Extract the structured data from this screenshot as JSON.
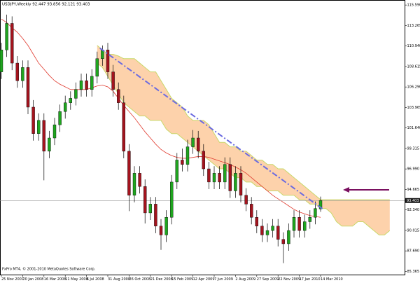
{
  "chart_data": {
    "type": "candlestick",
    "title": "USDJPY,Weekly  92.447 93.856 92.121 93.403",
    "footer": "FxPro MT4, © 2001-2010 MetaQuotes Software Corp.",
    "categories": [
      "25 Nov 2007",
      null,
      null,
      null,
      "20 Jan 2008",
      null,
      null,
      null,
      "16 Mar 2008",
      null,
      null,
      null,
      "11 May 2008",
      null,
      null,
      null,
      "6 Jul 2008",
      null,
      null,
      null,
      "31 Aug 2008",
      null,
      null,
      null,
      "26 Oct 2008",
      null,
      null,
      null,
      "21 Dec 2008",
      null,
      null,
      null,
      "15 Feb 2009",
      null,
      null,
      null,
      "12 Apr 2009",
      null,
      null,
      null,
      "7 Jun 2009",
      null,
      null,
      null,
      "2 Aug 2009",
      null,
      null,
      null,
      "27 Sep 2009",
      null,
      null,
      null,
      "22 Nov 2009",
      null,
      null,
      null,
      "17 Jan 2010",
      null,
      null,
      null,
      "14 Mar 2010"
    ],
    "open": [
      108,
      110.5,
      113.5,
      109,
      107,
      108.5,
      104,
      101,
      102.5,
      99,
      100.5,
      102,
      103.5,
      104.5,
      105,
      106,
      107,
      106,
      107.5,
      109.5,
      110.5,
      108,
      106,
      104.5,
      99,
      94,
      96.5,
      95,
      92,
      93,
      90.5,
      89.5,
      91.5,
      95.5,
      98,
      97.5,
      99.5,
      100.5,
      99,
      97,
      95.5,
      96.5,
      95.5,
      97.5,
      94.5,
      96.5,
      94,
      93,
      91.5,
      90.5,
      89.5,
      90,
      90.5,
      89,
      88.5,
      90,
      91.5,
      90,
      91,
      91.5,
      92.447
    ],
    "high": [
      111.3,
      114.5,
      114.3,
      109.8,
      109.3,
      109.3,
      104.8,
      103.3,
      103.3,
      101.3,
      102.8,
      104.3,
      105.3,
      105.8,
      106.8,
      107.8,
      107.8,
      108.3,
      110.3,
      111,
      111.3,
      108.8,
      106.8,
      105.3,
      99.8,
      97.3,
      97.3,
      95.8,
      93.8,
      93.8,
      91.3,
      92.3,
      96.3,
      98.8,
      99.3,
      100.3,
      101.4,
      101.3,
      99.8,
      97.8,
      97.3,
      97.3,
      98.3,
      98.3,
      97.3,
      97.3,
      94.8,
      93.8,
      92.3,
      91.3,
      90.8,
      91.3,
      91.3,
      89.8,
      90.8,
      92.3,
      92.3,
      91.8,
      92.3,
      93.3,
      93.856
    ],
    "low": [
      107.2,
      109.7,
      108.2,
      106.2,
      106.2,
      103.2,
      100.2,
      100.2,
      95.7,
      98.2,
      99.7,
      101.2,
      102.7,
      103.7,
      104.2,
      105.2,
      105.2,
      105.2,
      106.7,
      108.7,
      107.2,
      105.2,
      103.7,
      98.2,
      92.2,
      93.2,
      94.2,
      90.8,
      91.2,
      89.7,
      87.8,
      88.7,
      90.7,
      94.7,
      96.7,
      96.7,
      98.7,
      98.2,
      96.2,
      94.7,
      94.7,
      94.7,
      94.7,
      93.7,
      93.7,
      93.2,
      92.2,
      90.7,
      89.7,
      88.7,
      88.7,
      89.2,
      88.2,
      86.3,
      87.7,
      89.2,
      89.2,
      89.2,
      90.2,
      90.7,
      92.121
    ],
    "close": [
      110.5,
      113.5,
      109,
      107,
      108.5,
      104,
      101,
      102.5,
      99,
      100.5,
      102,
      103.5,
      104.5,
      105,
      106,
      107,
      106,
      107.5,
      109.5,
      110.5,
      108,
      106,
      104.5,
      99,
      94,
      96.5,
      95,
      92,
      93,
      90.5,
      89.5,
      91.5,
      95.5,
      98,
      97.5,
      99.5,
      100.5,
      99,
      97,
      95.5,
      96.5,
      95.5,
      97.5,
      94.5,
      96.5,
      94,
      93,
      91.5,
      90.5,
      89.5,
      90,
      90.5,
      89,
      88.5,
      90,
      91.5,
      90,
      91,
      91.5,
      92.5,
      93.403
    ],
    "up_color": "#1fa51f",
    "down_color": "#a3141e",
    "wick_color": "#000000",
    "ma": {
      "color": "#e03a2e",
      "values": [
        114,
        113.6,
        113,
        112.5,
        111.8,
        111,
        110,
        109,
        108.3,
        107.6,
        107,
        106.6,
        106.3,
        106,
        106,
        106,
        106,
        106.2,
        106.4,
        106.5,
        106.3,
        105.8,
        105,
        104.2,
        103.5,
        102.8,
        102,
        101.2,
        100.5,
        99.8,
        99.2,
        98.8,
        98.5,
        98.3,
        98.2,
        98.2,
        98.3,
        98.4,
        98.4,
        98.3,
        98.1,
        97.9,
        97.7,
        97.5,
        97.2,
        96.9,
        96.5,
        96,
        95.5,
        95,
        94.5,
        94,
        93.6,
        93.2,
        92.8,
        92.4,
        92.1,
        91.9,
        91.7,
        91.6,
        91.5
      ]
    },
    "cloud": {
      "fill": "#fdd2ab",
      "edge": "#c9d86a",
      "top": [
        null,
        null,
        null,
        null,
        null,
        null,
        null,
        null,
        null,
        null,
        null,
        null,
        null,
        null,
        null,
        null,
        null,
        null,
        111,
        110.5,
        110,
        110,
        109.8,
        109.5,
        109.5,
        109.5,
        109,
        108.5,
        108,
        108,
        107,
        106,
        105,
        104.5,
        104,
        103,
        102.5,
        102.5,
        102.5,
        102,
        101,
        100,
        100,
        99.5,
        99.5,
        99,
        99,
        98.5,
        98,
        98,
        97.5,
        97.5,
        97,
        97,
        96.5,
        96,
        95.5,
        95,
        94.5,
        94,
        93.5,
        93.5,
        93.5,
        93.5,
        93.5,
        93.5,
        93.5,
        93.5,
        93.5,
        93.5,
        93.5,
        93.5,
        93.5,
        93.5
      ],
      "bottom": [
        null,
        null,
        null,
        null,
        null,
        null,
        null,
        null,
        null,
        null,
        null,
        null,
        null,
        null,
        null,
        null,
        null,
        null,
        109,
        108.5,
        107.5,
        106.5,
        105.5,
        104.5,
        104,
        103.5,
        103,
        103,
        102.5,
        102.5,
        102.5,
        101.5,
        101,
        101,
        100.5,
        100,
        99.5,
        99,
        98.5,
        98,
        97.5,
        97,
        97,
        96.5,
        96,
        96,
        95.5,
        95.5,
        95,
        95,
        94.5,
        94.5,
        94.5,
        94,
        94,
        94,
        93.5,
        93.5,
        93,
        93,
        92.5,
        92.5,
        92,
        91,
        90.5,
        90.5,
        90.5,
        91,
        91,
        90.5,
        90,
        89.5,
        89.5,
        90
      ]
    },
    "trendline": {
      "color": "#6b6be0",
      "from": [
        18.5,
        110.7
      ],
      "to": [
        60.5,
        92.4
      ]
    },
    "last_price": 93.403,
    "ylim": [
      85,
      116
    ],
    "yticks": [
      {
        "value": 115.59,
        "label": "115.590"
      },
      113.265,
      {
        "value": 110.94,
        "label": "110.940"
      },
      108.615,
      {
        "value": 106.29,
        "label": "106.290"
      },
      103.965,
      {
        "value": 101.64,
        "label": "101.640"
      },
      99.315,
      {
        "value": 96.99,
        "label": "96.990"
      },
      94.665,
      {
        "value": 92.34,
        "label": "92.340"
      },
      90.015,
      {
        "value": 87.69,
        "label": "87.690"
      },
      85.365
    ]
  }
}
